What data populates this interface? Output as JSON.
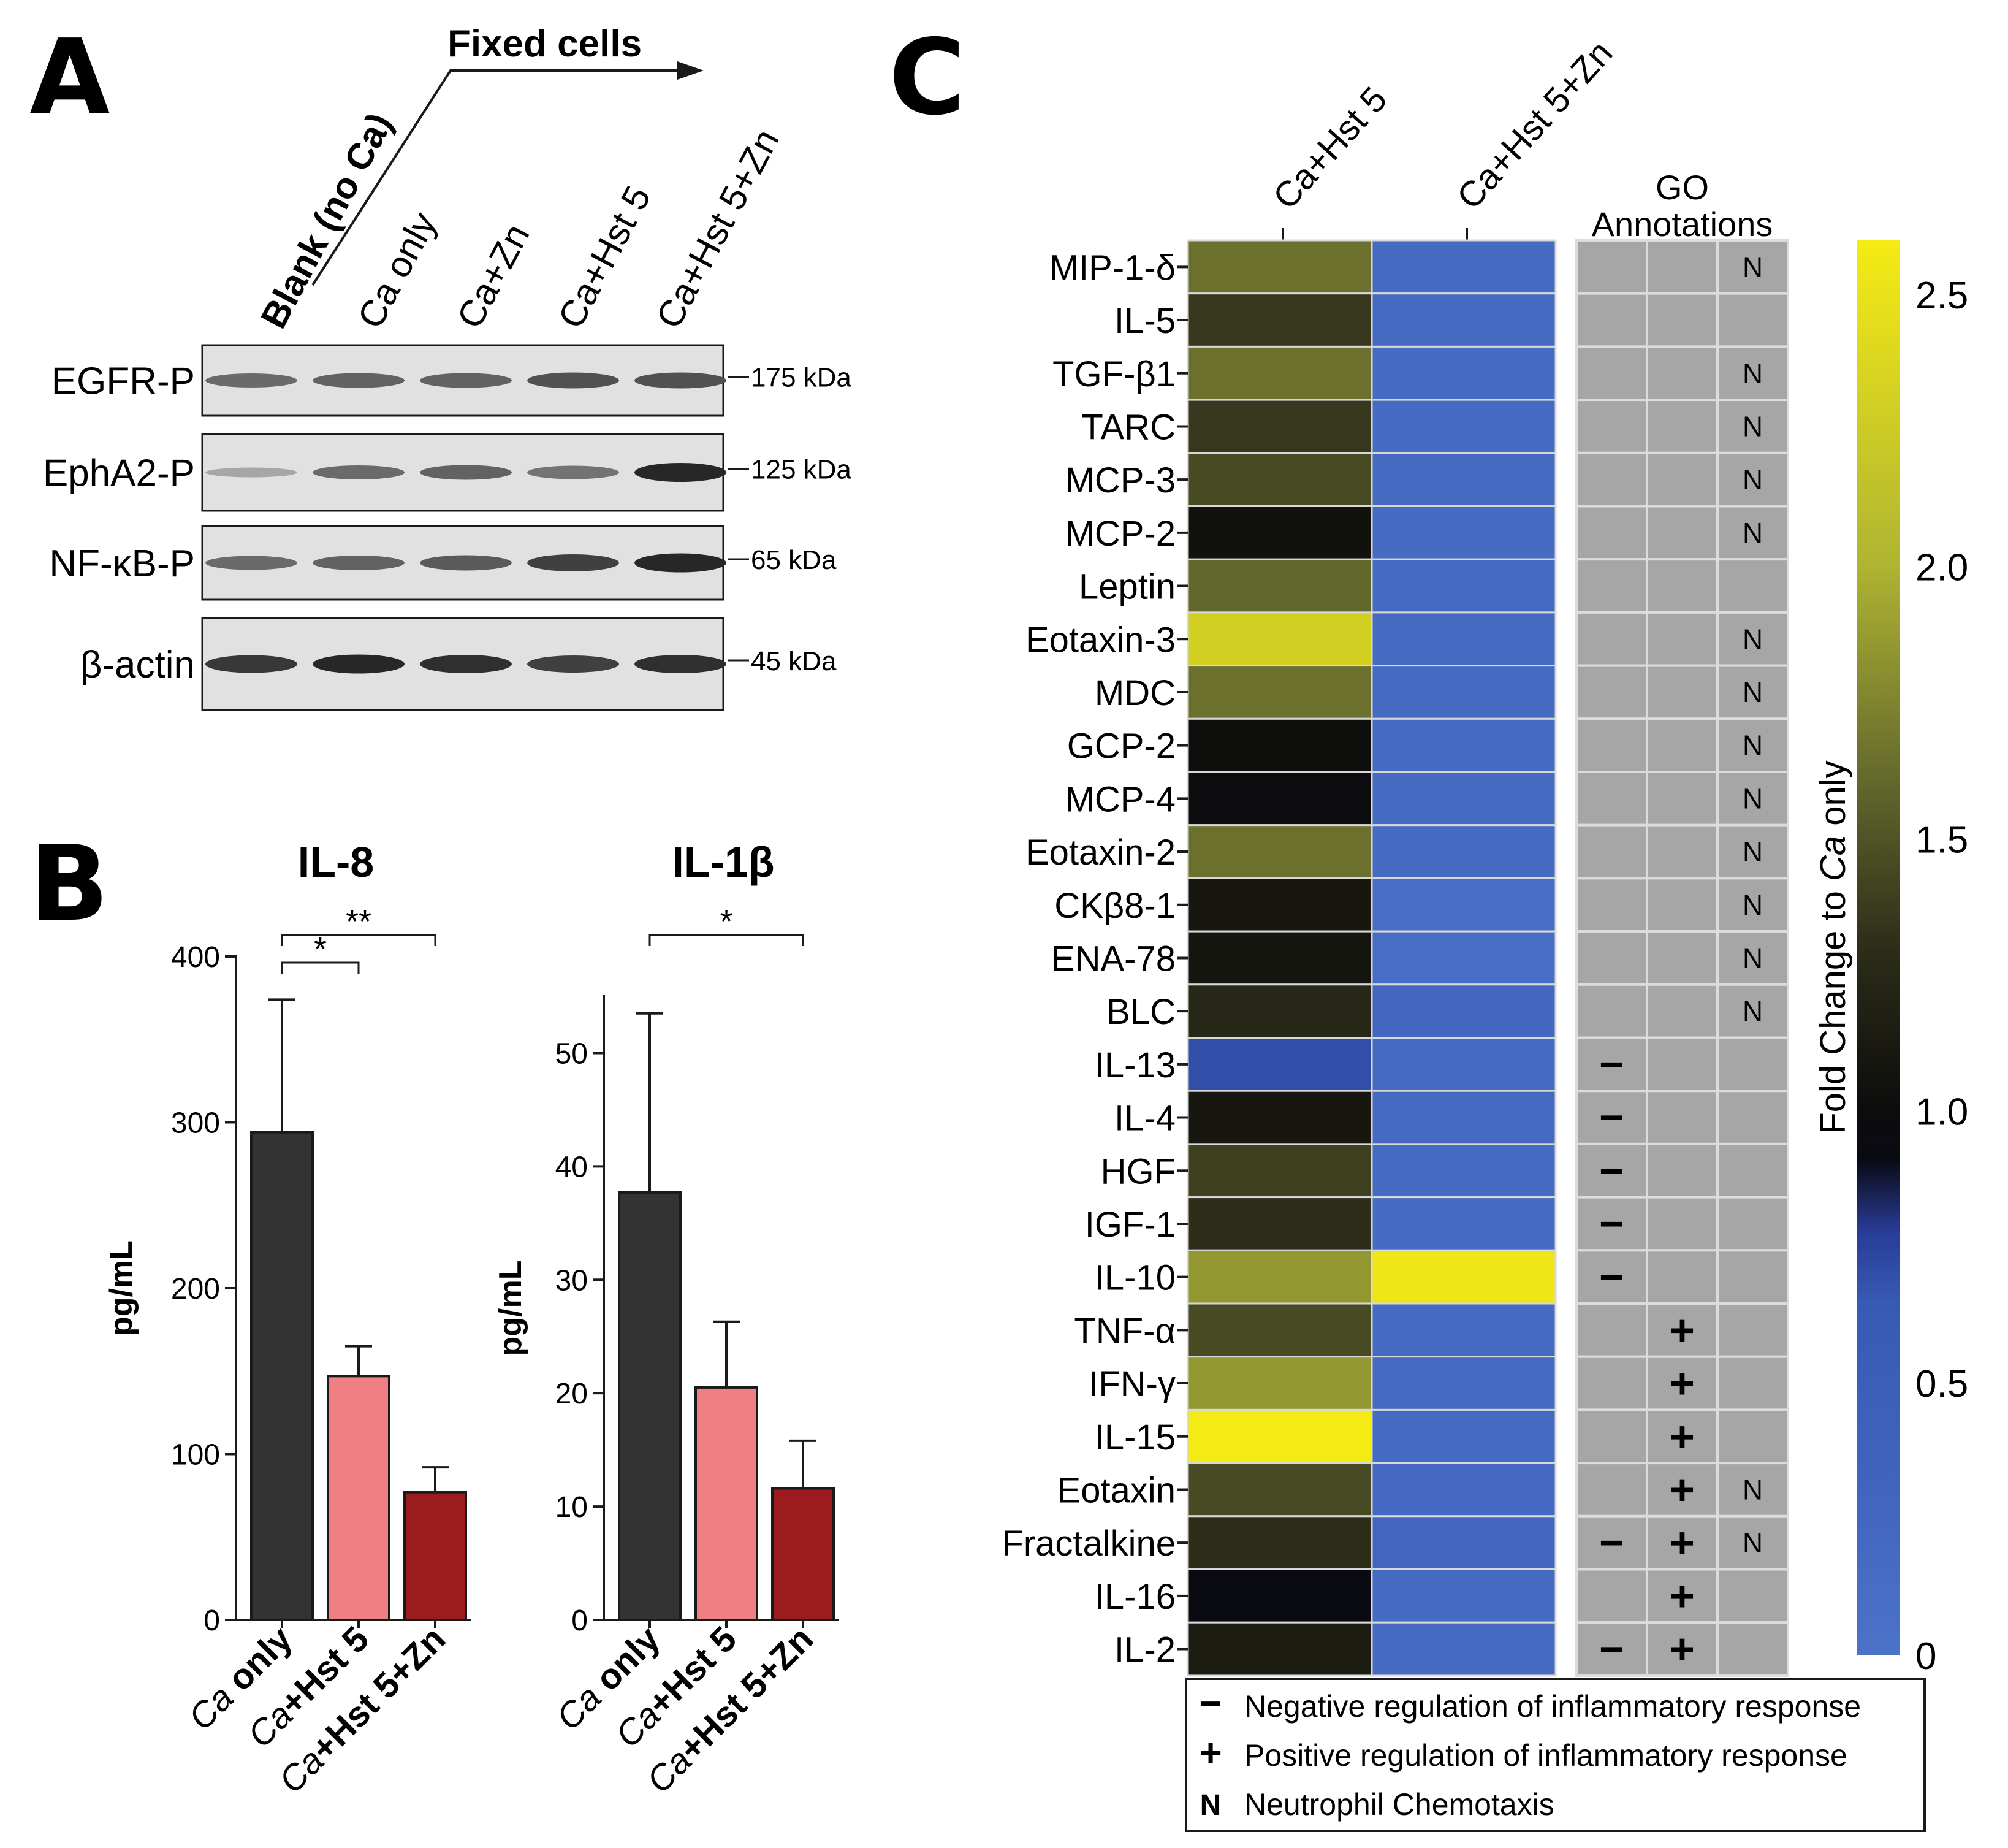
{
  "panels": {
    "a": "A",
    "b": "B",
    "c": "C"
  },
  "panel_a": {
    "fixed_cells_label": "Fixed cells",
    "lanes": [
      {
        "label": "Blank (no Ca)"
      },
      {
        "label": "Ca only"
      },
      {
        "label": "Ca+Zn"
      },
      {
        "label": "Ca+Hst 5"
      },
      {
        "label": "Ca+Hst 5+Zn"
      }
    ],
    "blots": [
      {
        "label": "EGFR-P",
        "marker": "175 kDa",
        "intensity": [
          0.55,
          0.6,
          0.6,
          0.7,
          0.7
        ]
      },
      {
        "label": "EphA2-P",
        "marker": "125 kDa",
        "intensity": [
          0.2,
          0.55,
          0.6,
          0.5,
          0.95
        ]
      },
      {
        "label": "NF-κB-P",
        "marker": "65 kDa",
        "intensity": [
          0.55,
          0.6,
          0.65,
          0.8,
          0.95
        ]
      },
      {
        "label": "β-actin",
        "marker": "45 kDa",
        "intensity": [
          0.85,
          0.95,
          0.9,
          0.8,
          0.9
        ]
      }
    ]
  },
  "chart_data": [
    {
      "type": "bar",
      "title": "IL-8",
      "ylabel": "pg/mL",
      "ylim": [
        0,
        400
      ],
      "yticks": [
        "0",
        "100",
        "200",
        "300",
        "400"
      ],
      "categories": [
        {
          "prefix": "Ca",
          "rest": " only"
        },
        {
          "prefix": "Ca",
          "rest": "+Hst 5"
        },
        {
          "prefix": "Ca",
          "rest": "+Hst 5+Zn"
        }
      ],
      "values": [
        294,
        147,
        77
      ],
      "errors": [
        80,
        18,
        15
      ],
      "colors": [
        "#333333",
        "#f07f84",
        "#9b1b1f"
      ],
      "significance": [
        {
          "from": 0,
          "to": 1,
          "label": "*"
        },
        {
          "from": 0,
          "to": 2,
          "label": "**"
        }
      ]
    },
    {
      "type": "bar",
      "title": "IL-1β",
      "ylabel": "pg/mL",
      "ylim": [
        0,
        55
      ],
      "yticks": [
        "0",
        "10",
        "20",
        "30",
        "40",
        "50"
      ],
      "categories": [
        {
          "prefix": "Ca",
          "rest": " only"
        },
        {
          "prefix": "Ca",
          "rest": "+Hst 5"
        },
        {
          "prefix": "Ca",
          "rest": "+Hst 5+Zn"
        }
      ],
      "values": [
        37.7,
        20.5,
        11.6
      ],
      "errors": [
        15.8,
        5.8,
        4.2
      ],
      "colors": [
        "#333333",
        "#f07f84",
        "#9b1b1f"
      ],
      "significance": [
        {
          "from": 0,
          "to": 2,
          "label": "*"
        }
      ]
    },
    {
      "type": "heatmap",
      "columns": [
        "Ca+Hst 5",
        "Ca+Hst 5+Zn"
      ],
      "go_title": "GO\nAnnotations",
      "colorbar": {
        "label_prefix": "Fold Change to ",
        "label_italic": "Ca",
        "label_suffix": " only",
        "min": 0,
        "max": 2.6,
        "ticks": [
          "0",
          "0.5",
          "1.0",
          "1.5",
          "2.0",
          "2.5"
        ]
      },
      "rows": [
        {
          "label": "MIP-1-δ",
          "values": [
            1.65,
            0.18
          ],
          "go": [
            "",
            "",
            "N"
          ]
        },
        {
          "label": "IL-5",
          "values": [
            1.35,
            0.18
          ],
          "go": [
            "",
            "",
            ""
          ]
        },
        {
          "label": "TGF-β1",
          "values": [
            1.65,
            0.17
          ],
          "go": [
            "",
            "",
            "N"
          ]
        },
        {
          "label": "TARC",
          "values": [
            1.35,
            0.17
          ],
          "go": [
            "",
            "",
            "N"
          ]
        },
        {
          "label": "MCP-3",
          "values": [
            1.45,
            0.18
          ],
          "go": [
            "",
            "",
            "N"
          ]
        },
        {
          "label": "MCP-2",
          "values": [
            1.05,
            0.17
          ],
          "go": [
            "",
            "",
            "N"
          ]
        },
        {
          "label": "Leptin",
          "values": [
            1.6,
            0.18
          ],
          "go": [
            "",
            "",
            ""
          ]
        },
        {
          "label": "Eotaxin-3",
          "values": [
            2.3,
            0.18
          ],
          "go": [
            "",
            "",
            "N"
          ]
        },
        {
          "label": "MDC",
          "values": [
            1.65,
            0.18
          ],
          "go": [
            "",
            "",
            "N"
          ]
        },
        {
          "label": "GCP-2",
          "values": [
            1.02,
            0.18
          ],
          "go": [
            "",
            "",
            "N"
          ]
        },
        {
          "label": "MCP-4",
          "values": [
            0.98,
            0.17
          ],
          "go": [
            "",
            "",
            "N"
          ]
        },
        {
          "label": "Eotaxin-2",
          "values": [
            1.65,
            0.16
          ],
          "go": [
            "",
            "",
            "N"
          ]
        },
        {
          "label": "CKβ8-1",
          "values": [
            1.1,
            0.13
          ],
          "go": [
            "",
            "",
            "N"
          ]
        },
        {
          "label": "ENA-78",
          "values": [
            1.08,
            0.12
          ],
          "go": [
            "",
            "",
            "N"
          ]
        },
        {
          "label": "BLC",
          "values": [
            1.25,
            0.25
          ],
          "go": [
            "",
            "",
            "N"
          ]
        },
        {
          "label": "IL-13",
          "values": [
            0.7,
            0.18
          ],
          "go": [
            "−",
            "",
            ""
          ]
        },
        {
          "label": "IL-4",
          "values": [
            1.1,
            0.18
          ],
          "go": [
            "−",
            "",
            ""
          ]
        },
        {
          "label": "HGF",
          "values": [
            1.4,
            0.18
          ],
          "go": [
            "−",
            "",
            ""
          ]
        },
        {
          "label": "IGF-1",
          "values": [
            1.3,
            0.17
          ],
          "go": [
            "−",
            "",
            ""
          ]
        },
        {
          "label": "IL-10",
          "values": [
            1.85,
            2.55
          ],
          "go": [
            "−",
            "",
            ""
          ]
        },
        {
          "label": "TNF-α",
          "values": [
            1.45,
            0.18
          ],
          "go": [
            "",
            "+",
            ""
          ]
        },
        {
          "label": "IFN-γ",
          "values": [
            1.85,
            0.18
          ],
          "go": [
            "",
            "+",
            ""
          ]
        },
        {
          "label": "IL-15",
          "values": [
            2.6,
            0.18
          ],
          "go": [
            "",
            "+",
            ""
          ]
        },
        {
          "label": "Eotaxin",
          "values": [
            1.45,
            0.2
          ],
          "go": [
            "",
            "+",
            "N"
          ]
        },
        {
          "label": "Fractalkine",
          "values": [
            1.3,
            0.28
          ],
          "go": [
            "−",
            "+",
            "N"
          ]
        },
        {
          "label": "IL-16",
          "values": [
            0.92,
            0.18
          ],
          "go": [
            "",
            "+",
            ""
          ]
        },
        {
          "label": "IL-2",
          "values": [
            1.15,
            0.18
          ],
          "go": [
            "−",
            "+",
            ""
          ]
        }
      ],
      "legend": [
        {
          "symbol": "−",
          "text": "Negative regulation of inflammatory response"
        },
        {
          "symbol": "+",
          "text": "Positive regulation of inflammatory response"
        },
        {
          "symbol": "N",
          "text": "Neutrophil Chemotaxis"
        }
      ]
    }
  ]
}
